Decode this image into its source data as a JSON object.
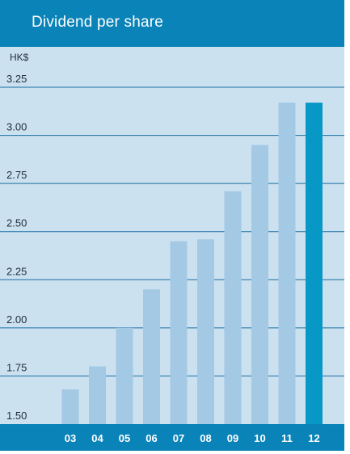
{
  "header": {
    "title": "Dividend per share"
  },
  "colors": {
    "header_bg": "#0a83b8",
    "panel_bg": "#cce1ef",
    "bar": "#a3c9e5",
    "highlight_bar": "#0898c6",
    "grid": "#1a6fa3"
  },
  "chart_data": {
    "type": "bar",
    "title": "Dividend per share",
    "ylabel": "HK$",
    "xlabel": "",
    "categories": [
      "03",
      "04",
      "05",
      "06",
      "07",
      "08",
      "09",
      "10",
      "11",
      "12"
    ],
    "values": [
      1.68,
      1.8,
      2.0,
      2.2,
      2.45,
      2.46,
      2.71,
      2.95,
      3.17,
      3.17
    ],
    "highlight_index": 9,
    "ylim": [
      1.5,
      3.25
    ],
    "yticks": [
      "1.50",
      "1.75",
      "2.00",
      "2.25",
      "2.50",
      "2.75",
      "3.00",
      "3.25"
    ],
    "grid": true,
    "legend": "none"
  }
}
